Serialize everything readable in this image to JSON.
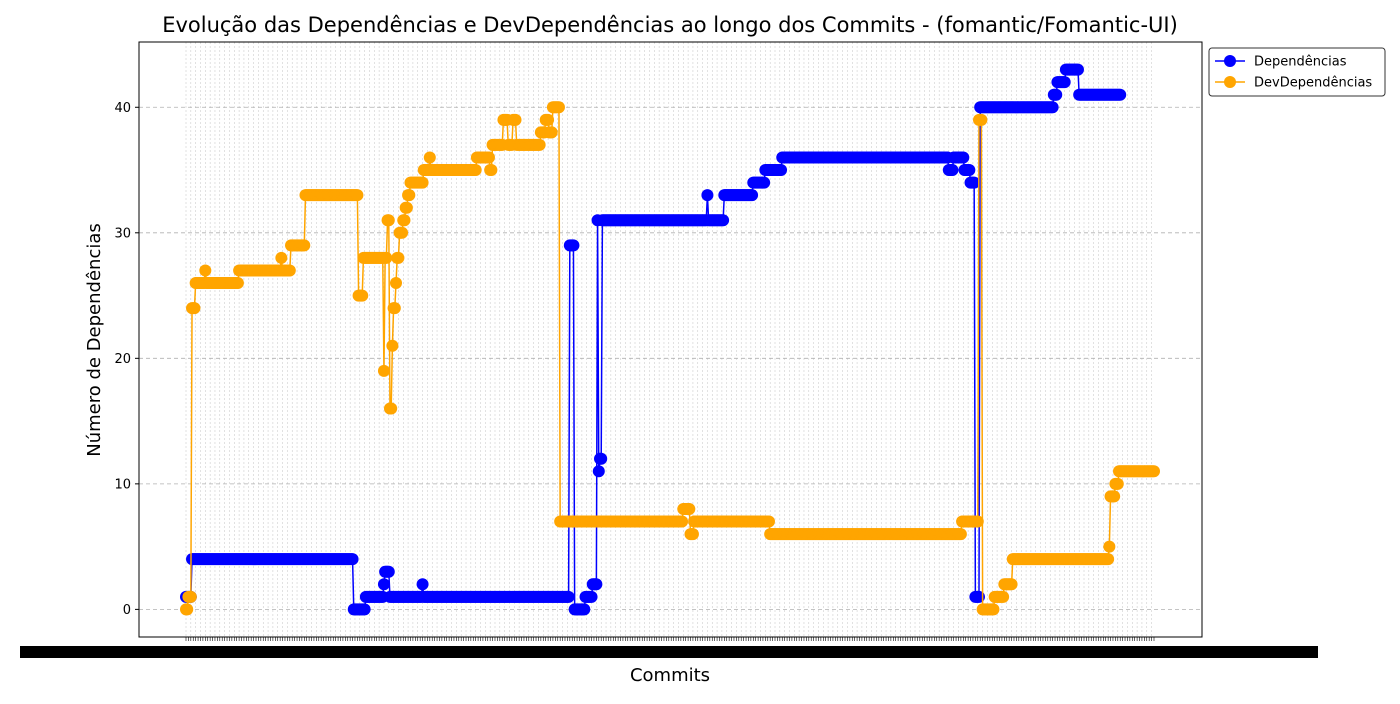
{
  "chart_data": {
    "type": "line",
    "title": "Evolução das Dependências e DevDependências ao longo dos Commits - (fomantic/Fomantic-UI)",
    "xlabel": "Commits",
    "ylabel": "Número de Dependências",
    "ylim": [
      -2.2,
      45.2
    ],
    "yticks": [
      0,
      10,
      20,
      30,
      40
    ],
    "grid": true,
    "legend_position": "outside top-right",
    "colors": {
      "deps": "#0000ff",
      "devdeps": "#ffa500",
      "grid": "#b0b0b0"
    },
    "series": [
      {
        "name": "Dependências",
        "key": "deps",
        "segments": [
          [
            1,
            1
          ],
          [
            6,
            4
          ],
          [
            139,
            4
          ],
          [
            140,
            0
          ],
          [
            150,
            1
          ],
          [
            164,
            1
          ],
          [
            165,
            2
          ],
          [
            166,
            3
          ],
          [
            170,
            1
          ],
          [
            196,
            1
          ],
          [
            197,
            2
          ],
          [
            198,
            1
          ],
          [
            318,
            1
          ],
          [
            319,
            29
          ],
          [
            322,
            29
          ],
          [
            323,
            0
          ],
          [
            331,
            0
          ],
          [
            332,
            1
          ],
          [
            337,
            1
          ],
          [
            338,
            2
          ],
          [
            341,
            2
          ],
          [
            342,
            31
          ],
          [
            343,
            11
          ],
          [
            344,
            12
          ],
          [
            346,
            31
          ],
          [
            432,
            31
          ],
          [
            433,
            33
          ],
          [
            434,
            31
          ],
          [
            446,
            31
          ],
          [
            447,
            33
          ],
          [
            470,
            33
          ],
          [
            471,
            34
          ],
          [
            480,
            34
          ],
          [
            481,
            35
          ],
          [
            494,
            35
          ],
          [
            495,
            36
          ],
          [
            632,
            36
          ],
          [
            633,
            35
          ],
          [
            636,
            35
          ],
          [
            637,
            36
          ],
          [
            645,
            36
          ],
          [
            646,
            35
          ],
          [
            650,
            35
          ],
          [
            651,
            34
          ],
          [
            654,
            34
          ],
          [
            655,
            1
          ],
          [
            658,
            1
          ],
          [
            659,
            40
          ],
          [
            719,
            40
          ],
          [
            720,
            41
          ],
          [
            722,
            41
          ],
          [
            723,
            42
          ],
          [
            729,
            42
          ],
          [
            730,
            43
          ],
          [
            740,
            43
          ],
          [
            741,
            41
          ],
          [
            775,
            41
          ]
        ]
      },
      {
        "name": "DevDependências",
        "key": "devdeps",
        "segments": [
          [
            1,
            0
          ],
          [
            3,
            1
          ],
          [
            5,
            1
          ],
          [
            6,
            24
          ],
          [
            8,
            24
          ],
          [
            9,
            26
          ],
          [
            16,
            26
          ],
          [
            17,
            27
          ],
          [
            18,
            26
          ],
          [
            44,
            26
          ],
          [
            45,
            27
          ],
          [
            79,
            27
          ],
          [
            80,
            28
          ],
          [
            81,
            27
          ],
          [
            87,
            27
          ],
          [
            88,
            29
          ],
          [
            99,
            29
          ],
          [
            100,
            33
          ],
          [
            143,
            33
          ],
          [
            144,
            25
          ],
          [
            147,
            25
          ],
          [
            148,
            28
          ],
          [
            164,
            28
          ],
          [
            165,
            19
          ],
          [
            166,
            28
          ],
          [
            168,
            31
          ],
          [
            170,
            16
          ],
          [
            172,
            21
          ],
          [
            173,
            24
          ],
          [
            175,
            26
          ],
          [
            176,
            28
          ],
          [
            178,
            30
          ],
          [
            181,
            31
          ],
          [
            183,
            32
          ],
          [
            185,
            33
          ],
          [
            187,
            34
          ],
          [
            197,
            34
          ],
          [
            198,
            35
          ],
          [
            203,
            36
          ],
          [
            204,
            35
          ],
          [
            241,
            35
          ],
          [
            242,
            36
          ],
          [
            252,
            36
          ],
          [
            253,
            35
          ],
          [
            255,
            37
          ],
          [
            264,
            39
          ],
          [
            268,
            37
          ],
          [
            272,
            39
          ],
          [
            275,
            37
          ],
          [
            294,
            37
          ],
          [
            295,
            38
          ],
          [
            299,
            39
          ],
          [
            302,
            38
          ],
          [
            305,
            40
          ],
          [
            310,
            40
          ],
          [
            311,
            7
          ],
          [
            412,
            7
          ],
          [
            413,
            8
          ],
          [
            418,
            8
          ],
          [
            419,
            6
          ],
          [
            421,
            6
          ],
          [
            422,
            7
          ],
          [
            484,
            7
          ],
          [
            485,
            6
          ],
          [
            643,
            6
          ],
          [
            644,
            7
          ],
          [
            657,
            7
          ],
          [
            658,
            39
          ],
          [
            660,
            39
          ],
          [
            661,
            0
          ],
          [
            670,
            0
          ],
          [
            671,
            1
          ],
          [
            678,
            1
          ],
          [
            679,
            2
          ],
          [
            685,
            2
          ],
          [
            686,
            4
          ],
          [
            765,
            4
          ],
          [
            766,
            5
          ],
          [
            767,
            9
          ],
          [
            770,
            9
          ],
          [
            771,
            10
          ],
          [
            773,
            10
          ],
          [
            774,
            11
          ],
          [
            803,
            11
          ]
        ]
      }
    ]
  }
}
